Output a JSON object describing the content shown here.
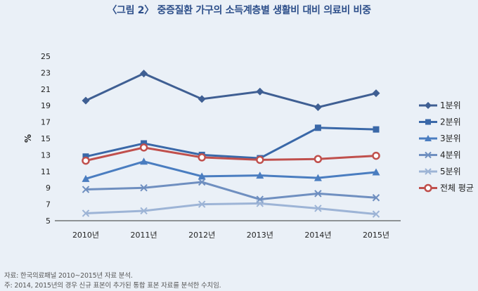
{
  "title": "〈그림 2〉 중증질환 가구의 소득계층별 생활비 대비 의료비 비중",
  "notes": {
    "source": "자료: 한국의료패널 2010~2015년 자료 분석.",
    "footnote": "주: 2014, 2015년의 경우 신규 표본이 추가된 통합 표본 자료를 분석한 수치임."
  },
  "chart_data": {
    "type": "line",
    "title": "〈그림 2〉 중증질환 가구의 소득계층별 생활비 대비 의료비 비중",
    "xlabel": "",
    "ylabel": "%",
    "categories": [
      "2010년",
      "2011년",
      "2012년",
      "2013년",
      "2014년",
      "2015년"
    ],
    "yticks": [
      5,
      7,
      9,
      11,
      13,
      15,
      17,
      19,
      21,
      23,
      25
    ],
    "ylim": [
      5,
      25
    ],
    "grid": false,
    "legend_position": "right",
    "series": [
      {
        "name": "1분위",
        "marker": "diamond",
        "color": "#3f5f93",
        "values": [
          19.6,
          22.9,
          19.8,
          20.7,
          18.8,
          20.5
        ]
      },
      {
        "name": "2분위",
        "marker": "square",
        "color": "#3a68a8",
        "values": [
          12.8,
          14.4,
          13.0,
          12.6,
          16.3,
          16.1
        ]
      },
      {
        "name": "3분위",
        "marker": "triangle",
        "color": "#4a7dc0",
        "values": [
          10.1,
          12.2,
          10.4,
          10.5,
          10.2,
          10.9
        ]
      },
      {
        "name": "4분위",
        "marker": "x",
        "color": "#6f8fc0",
        "values": [
          8.8,
          9.0,
          9.7,
          7.6,
          8.3,
          7.8
        ]
      },
      {
        "name": "5분위",
        "marker": "x",
        "color": "#9db4d6",
        "values": [
          5.9,
          6.2,
          7.0,
          7.1,
          6.5,
          5.8
        ]
      },
      {
        "name": "전체 평균",
        "marker": "circle",
        "color": "#c0504d",
        "values": [
          12.3,
          13.9,
          12.7,
          12.4,
          12.5,
          12.9
        ]
      }
    ]
  }
}
